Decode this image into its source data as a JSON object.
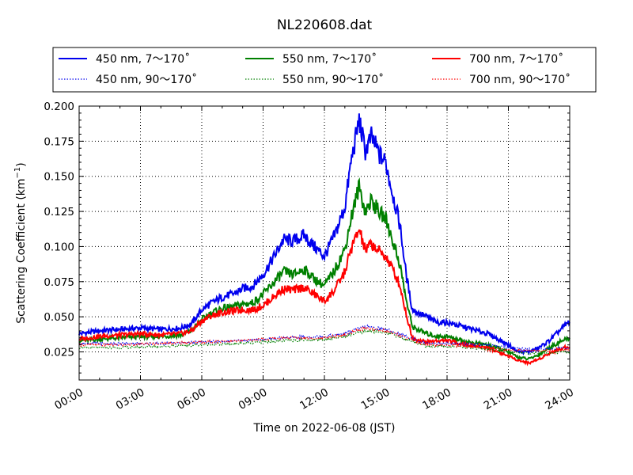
{
  "chart_data": {
    "type": "line",
    "title": "NL220608.dat",
    "xlabel": "Time on 2022-06-08 (JST)",
    "ylabel": "Scattering Coefficient (km",
    "ylabel_exp": "−1",
    "ylabel_close": ")",
    "xlim": [
      0,
      24
    ],
    "ylim": [
      0.005,
      0.2
    ],
    "x_ticks": [
      0,
      3,
      6,
      9,
      12,
      15,
      18,
      21,
      24
    ],
    "x_tick_labels": [
      "00:00",
      "03:00",
      "06:00",
      "09:00",
      "12:00",
      "15:00",
      "18:00",
      "21:00",
      "24:00"
    ],
    "y_ticks": [
      0.025,
      0.05,
      0.075,
      0.1,
      0.125,
      0.15,
      0.175,
      0.2
    ],
    "y_tick_labels": [
      "0.025",
      "0.050",
      "0.075",
      "0.100",
      "0.125",
      "0.150",
      "0.175",
      "0.200"
    ],
    "grid": true,
    "legend_placement": "top, outside plot, 3 columns",
    "series": [
      {
        "name": "450 nm, 7～170˚",
        "color": "#0000ee",
        "style": "solid",
        "x": [
          0,
          1,
          2,
          3,
          4,
          5,
          5.5,
          6,
          6.5,
          7,
          7.5,
          8,
          8.5,
          9,
          9.5,
          10,
          10.5,
          11,
          11.5,
          12,
          12.5,
          13,
          13.3,
          13.7,
          14,
          14.3,
          14.7,
          15,
          15.3,
          15.7,
          16,
          16.3,
          16.7,
          17,
          17.5,
          18,
          19,
          20,
          21,
          21.5,
          22,
          22.5,
          23,
          23.5,
          24
        ],
        "y": [
          0.038,
          0.04,
          0.041,
          0.042,
          0.041,
          0.042,
          0.045,
          0.055,
          0.06,
          0.064,
          0.066,
          0.07,
          0.072,
          0.08,
          0.092,
          0.105,
          0.104,
          0.108,
          0.1,
          0.093,
          0.108,
          0.128,
          0.16,
          0.19,
          0.168,
          0.178,
          0.165,
          0.16,
          0.14,
          0.115,
          0.08,
          0.055,
          0.052,
          0.05,
          0.046,
          0.046,
          0.042,
          0.038,
          0.03,
          0.025,
          0.025,
          0.028,
          0.033,
          0.04,
          0.047
        ]
      },
      {
        "name": "550 nm, 7～170˚",
        "color": "#008000",
        "style": "solid",
        "x": [
          0,
          1,
          2,
          3,
          4,
          5,
          5.5,
          6,
          6.5,
          7,
          7.5,
          8,
          8.5,
          9,
          9.5,
          10,
          10.5,
          11,
          11.5,
          12,
          12.5,
          13,
          13.3,
          13.7,
          14,
          14.3,
          14.7,
          15,
          15.3,
          15.7,
          16,
          16.3,
          16.7,
          17,
          17.5,
          18,
          19,
          20,
          21,
          21.5,
          22,
          22.5,
          23,
          23.5,
          24
        ],
        "y": [
          0.033,
          0.034,
          0.035,
          0.036,
          0.036,
          0.037,
          0.04,
          0.048,
          0.053,
          0.056,
          0.057,
          0.059,
          0.06,
          0.066,
          0.074,
          0.082,
          0.08,
          0.084,
          0.077,
          0.072,
          0.083,
          0.098,
          0.12,
          0.143,
          0.125,
          0.133,
          0.124,
          0.12,
          0.106,
          0.087,
          0.062,
          0.043,
          0.04,
          0.038,
          0.036,
          0.036,
          0.032,
          0.03,
          0.025,
          0.021,
          0.02,
          0.023,
          0.028,
          0.032,
          0.035
        ]
      },
      {
        "name": "700 nm, 7～170˚",
        "color": "#ff0000",
        "style": "solid",
        "x": [
          0,
          1,
          2,
          3,
          4,
          5,
          5.5,
          6,
          6.5,
          7,
          7.5,
          8,
          8.5,
          9,
          9.5,
          10,
          10.5,
          11,
          11.5,
          12,
          12.5,
          13,
          13.3,
          13.7,
          14,
          14.3,
          14.7,
          15,
          15.3,
          15.7,
          16,
          16.3,
          16.7,
          17,
          17.5,
          18,
          19,
          20,
          21,
          21.5,
          22,
          22.5,
          23,
          23.5,
          24
        ],
        "y": [
          0.034,
          0.036,
          0.037,
          0.038,
          0.037,
          0.038,
          0.04,
          0.047,
          0.051,
          0.053,
          0.054,
          0.055,
          0.055,
          0.058,
          0.064,
          0.07,
          0.069,
          0.071,
          0.066,
          0.061,
          0.069,
          0.082,
          0.098,
          0.112,
          0.097,
          0.102,
          0.096,
          0.093,
          0.085,
          0.072,
          0.052,
          0.035,
          0.033,
          0.032,
          0.033,
          0.033,
          0.03,
          0.028,
          0.022,
          0.019,
          0.017,
          0.02,
          0.024,
          0.027,
          0.029
        ]
      },
      {
        "name": "450 nm, 90～170˚",
        "color": "#0000ee",
        "style": "dotted",
        "x": [
          0,
          2,
          4,
          6,
          8,
          10,
          12,
          13,
          14,
          15,
          16,
          17,
          18,
          20,
          21,
          22,
          23,
          24
        ],
        "y": [
          0.031,
          0.031,
          0.031,
          0.032,
          0.033,
          0.035,
          0.036,
          0.038,
          0.043,
          0.041,
          0.036,
          0.031,
          0.031,
          0.03,
          0.028,
          0.027,
          0.027,
          0.028
        ]
      },
      {
        "name": "550 nm, 90～170˚",
        "color": "#008000",
        "style": "dotted",
        "x": [
          0,
          2,
          4,
          6,
          8,
          10,
          12,
          13,
          14,
          15,
          16,
          17,
          18,
          20,
          21,
          22,
          23,
          24
        ],
        "y": [
          0.028,
          0.028,
          0.029,
          0.03,
          0.031,
          0.033,
          0.034,
          0.036,
          0.04,
          0.039,
          0.034,
          0.029,
          0.029,
          0.027,
          0.025,
          0.024,
          0.024,
          0.025
        ]
      },
      {
        "name": "700 nm, 90～170˚",
        "color": "#ff0000",
        "style": "dotted",
        "x": [
          0,
          2,
          4,
          6,
          8,
          10,
          12,
          13,
          14,
          15,
          16,
          17,
          18,
          20,
          21,
          22,
          23,
          24
        ],
        "y": [
          0.03,
          0.03,
          0.031,
          0.032,
          0.033,
          0.035,
          0.035,
          0.037,
          0.042,
          0.04,
          0.035,
          0.03,
          0.03,
          0.028,
          0.026,
          0.026,
          0.026,
          0.027
        ]
      }
    ]
  }
}
